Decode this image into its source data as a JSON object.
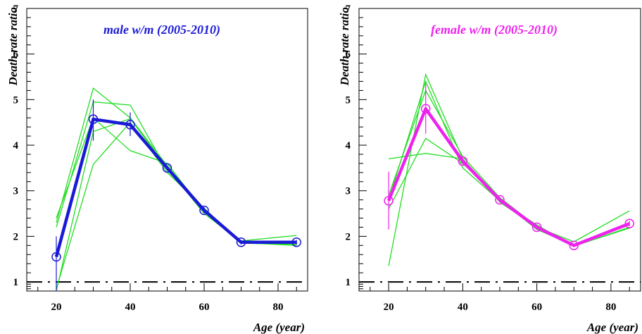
{
  "chart_data": [
    {
      "type": "line",
      "title": "male w/m (2005-2010)",
      "xlabel": "Age (year)",
      "ylabel": "Death rate ratio",
      "xlim": [
        12,
        88
      ],
      "ylim": [
        0.8,
        7
      ],
      "xticks": [
        20,
        40,
        60,
        80
      ],
      "yticks": [
        1,
        2,
        3,
        4,
        5,
        6,
        7
      ],
      "reference_line": 1,
      "colors": {
        "main": "#1a1ad6",
        "thin": "#22dd22",
        "title": "#1a1ad6"
      },
      "main_series": {
        "x": [
          20,
          30,
          40,
          50,
          60,
          70,
          85
        ],
        "y": [
          1.55,
          4.57,
          4.45,
          3.5,
          2.57,
          1.87,
          1.87
        ],
        "err_low": [
          0.8,
          4.1,
          4.2,
          3.45,
          2.5,
          1.82,
          1.82
        ],
        "err_high": [
          2.0,
          5.0,
          4.72,
          3.55,
          2.64,
          1.92,
          1.92
        ]
      },
      "thin_series": [
        {
          "x": [
            20,
            30,
            40,
            50,
            60,
            70,
            85
          ],
          "y": [
            2.3,
            5.25,
            4.6,
            3.55,
            2.55,
            1.9,
            2.02
          ]
        },
        {
          "x": [
            20,
            30,
            40,
            50,
            60,
            70,
            85
          ],
          "y": [
            2.2,
            4.95,
            4.88,
            3.45,
            2.6,
            1.85,
            1.82
          ]
        },
        {
          "x": [
            20,
            30,
            40,
            50,
            60,
            70,
            85
          ],
          "y": [
            0.8,
            4.3,
            4.58,
            3.5,
            2.5,
            1.88,
            1.85
          ]
        },
        {
          "x": [
            20,
            30,
            40,
            50,
            60,
            70,
            85
          ],
          "y": [
            0.85,
            3.58,
            4.5,
            3.4,
            2.62,
            1.86,
            1.8
          ]
        },
        {
          "x": [
            20,
            30,
            40,
            50,
            60,
            70,
            85
          ],
          "y": [
            2.4,
            4.6,
            3.88,
            3.6,
            2.55,
            1.87,
            1.87
          ]
        }
      ]
    },
    {
      "type": "line",
      "title": "female w/m (2005-2010)",
      "xlabel": "Age (year)",
      "ylabel": "Death rate ratio",
      "xlim": [
        12,
        88
      ],
      "ylim": [
        0.8,
        7
      ],
      "xticks": [
        20,
        40,
        60,
        80
      ],
      "yticks": [
        1,
        2,
        3,
        4,
        5,
        6,
        7
      ],
      "reference_line": 1,
      "colors": {
        "main": "#ee22ee",
        "thin": "#22dd22",
        "title": "#ee22ee"
      },
      "main_series": {
        "x": [
          20,
          30,
          40,
          50,
          60,
          70,
          85
        ],
        "y": [
          2.78,
          4.8,
          3.65,
          2.8,
          2.2,
          1.8,
          2.28
        ],
        "err_low": [
          2.15,
          4.25,
          3.58,
          2.75,
          2.15,
          1.76,
          2.22
        ],
        "err_high": [
          3.42,
          5.35,
          3.72,
          2.85,
          2.25,
          1.84,
          2.34
        ]
      },
      "thin_series": [
        {
          "x": [
            20,
            30,
            40,
            50,
            60,
            70,
            85
          ],
          "y": [
            3.7,
            3.82,
            3.7,
            2.75,
            2.2,
            1.88,
            2.56
          ]
        },
        {
          "x": [
            20,
            30,
            40,
            50,
            60,
            70,
            85
          ],
          "y": [
            1.35,
            5.55,
            3.7,
            2.8,
            2.15,
            1.8,
            2.25
          ]
        },
        {
          "x": [
            20,
            30,
            40,
            50,
            60,
            70,
            85
          ],
          "y": [
            2.8,
            5.4,
            3.5,
            2.78,
            2.25,
            1.78,
            2.2
          ]
        },
        {
          "x": [
            20,
            30,
            40,
            50,
            60,
            70,
            85
          ],
          "y": [
            2.6,
            4.15,
            3.6,
            2.82,
            2.18,
            1.82,
            2.3
          ]
        },
        {
          "x": [
            20,
            30,
            40,
            50,
            60,
            70,
            85
          ],
          "y": [
            2.9,
            5.2,
            3.75,
            2.85,
            2.22,
            1.79,
            2.18
          ]
        }
      ]
    }
  ]
}
